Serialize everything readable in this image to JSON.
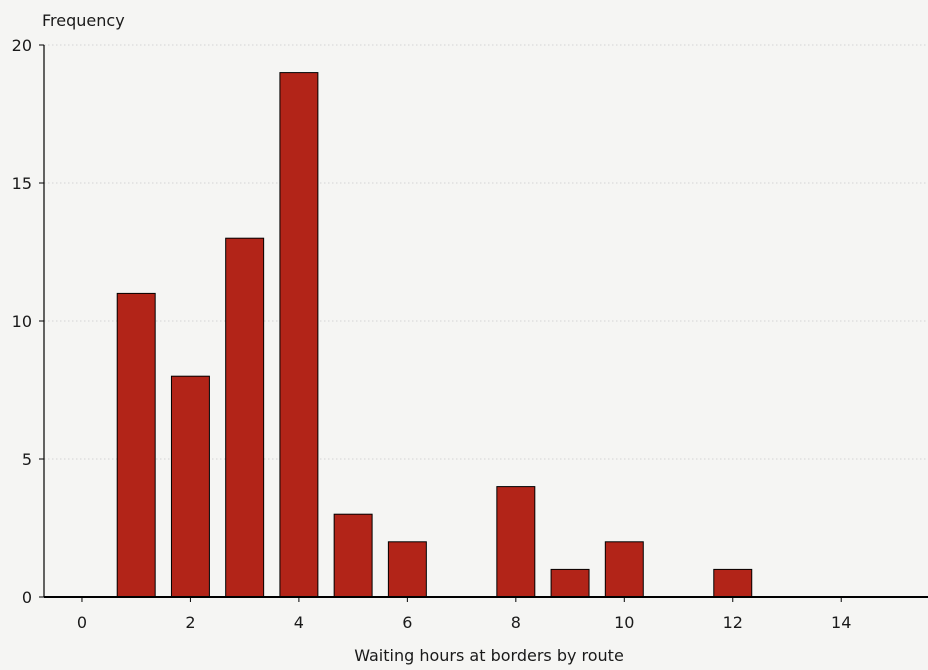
{
  "colors": {
    "background": "#f5f5f3",
    "bar_fill": "#b22418",
    "bar_stroke": "#000000",
    "gridline": "#d4d4d4",
    "axis": "#000000"
  },
  "chart_data": {
    "type": "bar",
    "title": "",
    "xlabel": "Waiting hours at borders by route",
    "ylabel": "Frequency",
    "x": [
      1,
      2,
      3,
      4,
      5,
      6,
      8,
      9,
      10,
      12
    ],
    "values": [
      11,
      8,
      13,
      19,
      3,
      2,
      4,
      1,
      2,
      1
    ],
    "bar_width": 0.7,
    "xlim": [
      -0.7,
      15.6
    ],
    "ylim": [
      0,
      20
    ],
    "xticks": [
      0,
      2,
      4,
      6,
      8,
      10,
      12,
      14
    ],
    "yticks": [
      0,
      5,
      10,
      15,
      20
    ],
    "grid": "y-dotted",
    "legend": "none"
  }
}
